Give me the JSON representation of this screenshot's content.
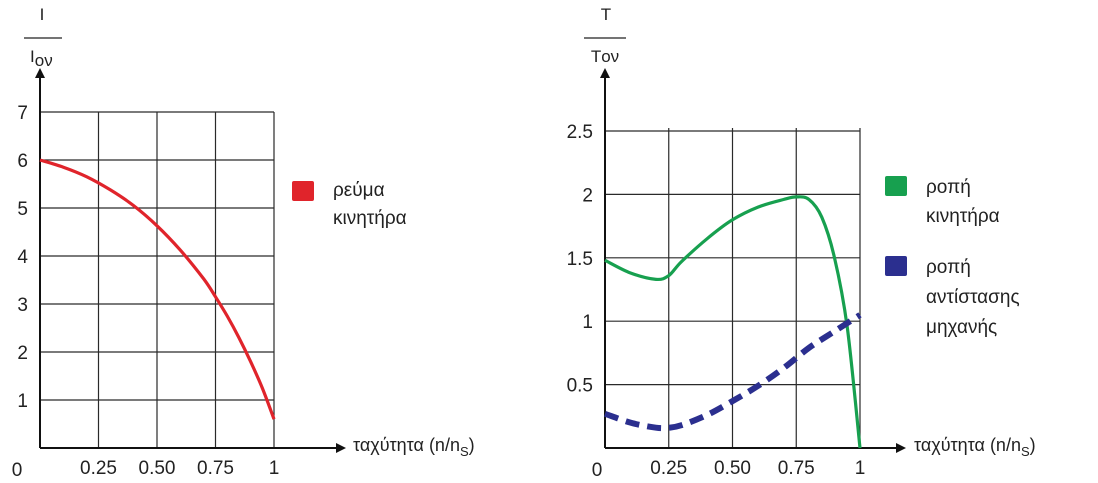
{
  "chart_data": [
    {
      "type": "line",
      "title": "",
      "ylabel": {
        "numerator": "I",
        "denominator": "I",
        "denominator_sub": "ον"
      },
      "xlabel": {
        "text": "ταχύτητα (n/n",
        "sub": "S",
        "close": ")"
      },
      "origin_label": "0",
      "x_tick_labels": [
        "0.25",
        "0.50",
        "0.75",
        "1"
      ],
      "x_ticks": [
        0.25,
        0.5,
        0.75,
        1
      ],
      "y_tick_labels": [
        "1",
        "2",
        "3",
        "4",
        "5",
        "6",
        "7"
      ],
      "y_ticks": [
        1,
        2,
        3,
        4,
        5,
        6,
        7
      ],
      "xlim": [
        0,
        1
      ],
      "ylim": [
        0,
        7
      ],
      "grid": true,
      "legend_position": "right",
      "series": [
        {
          "name": "ρεύμα κινητήρα",
          "legend_lines": [
            "ρεύμα",
            "κινητήρα"
          ],
          "color": "#e0242b",
          "style": "solid",
          "x": [
            0,
            0.1,
            0.2,
            0.3,
            0.4,
            0.5,
            0.6,
            0.7,
            0.75,
            0.8,
            0.85,
            0.9,
            0.95,
            1.0
          ],
          "y": [
            6.0,
            5.85,
            5.65,
            5.38,
            5.05,
            4.63,
            4.12,
            3.52,
            3.15,
            2.75,
            2.3,
            1.8,
            1.25,
            0.6
          ]
        }
      ]
    },
    {
      "type": "line",
      "title": "",
      "ylabel": {
        "numerator": "T",
        "denominator": "Tον"
      },
      "xlabel": {
        "text": "ταχύτητα (n/n",
        "sub": "S",
        "close": ")"
      },
      "origin_label": "0",
      "x_tick_labels": [
        "0.25",
        "0.50",
        "0.75",
        "1"
      ],
      "x_ticks": [
        0.25,
        0.5,
        0.75,
        1
      ],
      "y_tick_labels": [
        "0.5",
        "1",
        "1.5",
        "2",
        "2.5"
      ],
      "y_ticks": [
        0.5,
        1,
        1.5,
        2,
        2.5
      ],
      "xlim": [
        0,
        1
      ],
      "ylim": [
        0,
        2.5
      ],
      "grid": true,
      "legend_position": "right",
      "series": [
        {
          "name": "ροπή κινητήρα",
          "legend_lines": [
            "ροπή",
            "κινητήρα"
          ],
          "color": "#17a04f",
          "style": "solid",
          "x": [
            0,
            0.1,
            0.2,
            0.25,
            0.3,
            0.4,
            0.5,
            0.6,
            0.7,
            0.75,
            0.8,
            0.85,
            0.9,
            0.95,
            1.0
          ],
          "y": [
            1.48,
            1.38,
            1.33,
            1.36,
            1.47,
            1.65,
            1.8,
            1.9,
            1.96,
            1.98,
            1.96,
            1.82,
            1.5,
            0.95,
            0.0
          ]
        },
        {
          "name": "ροπή αντίστασης μηχανής",
          "legend_lines": [
            "ροπή",
            "αντίστασης",
            "μηχανής"
          ],
          "color": "#2b2f8f",
          "style": "dashed",
          "x": [
            0,
            0.1,
            0.2,
            0.25,
            0.3,
            0.4,
            0.5,
            0.6,
            0.7,
            0.8,
            0.9,
            1.0
          ],
          "y": [
            0.27,
            0.2,
            0.16,
            0.16,
            0.18,
            0.26,
            0.37,
            0.49,
            0.63,
            0.79,
            0.92,
            1.05
          ]
        }
      ]
    }
  ]
}
